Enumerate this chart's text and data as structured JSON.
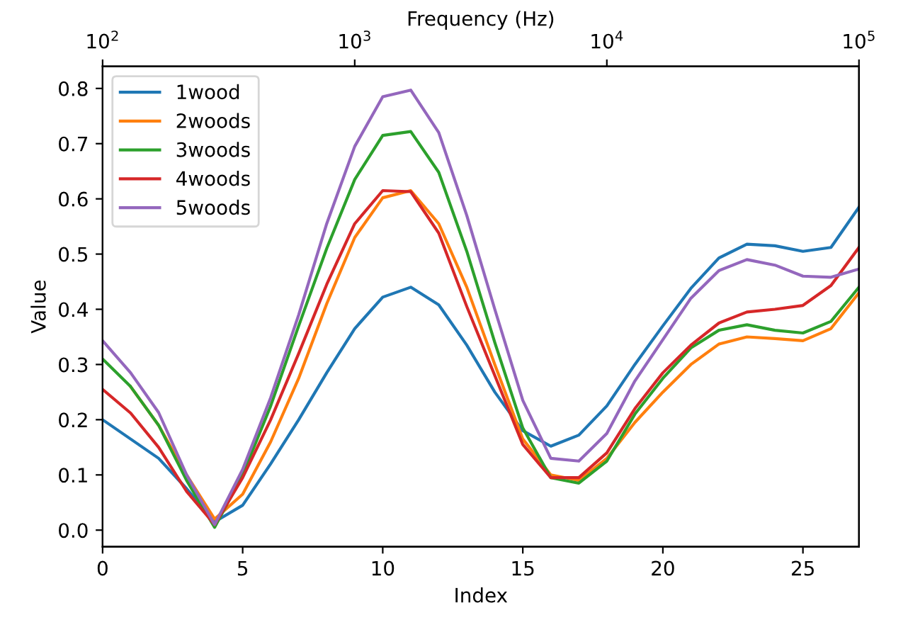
{
  "chart_data": {
    "type": "line",
    "xlabel": "Index",
    "ylabel": "Value",
    "x2label": "Frequency (Hz)",
    "x": [
      0,
      1,
      2,
      3,
      4,
      5,
      6,
      7,
      8,
      9,
      10,
      11,
      12,
      13,
      14,
      15,
      16,
      17,
      18,
      19,
      20,
      21,
      22,
      23,
      24,
      25,
      26,
      27
    ],
    "series": [
      {
        "name": "1wood",
        "color": "#1f77b4",
        "values": [
          0.2,
          0.165,
          0.13,
          0.075,
          0.015,
          0.045,
          0.12,
          0.2,
          0.285,
          0.365,
          0.422,
          0.44,
          0.408,
          0.335,
          0.25,
          0.18,
          0.152,
          0.172,
          0.225,
          0.3,
          0.37,
          0.438,
          0.493,
          0.518,
          0.515,
          0.505,
          0.512,
          0.585
        ]
      },
      {
        "name": "2woods",
        "color": "#ff7f0e",
        "values": [
          null,
          0.26,
          0.19,
          0.1,
          0.02,
          0.065,
          0.16,
          0.275,
          0.41,
          0.53,
          0.602,
          0.615,
          0.555,
          0.44,
          0.3,
          0.165,
          0.1,
          0.09,
          0.13,
          0.195,
          0.25,
          0.3,
          0.337,
          0.35,
          0.347,
          0.343,
          0.365,
          0.43
        ]
      },
      {
        "name": "3woods",
        "color": "#2ca02c",
        "values": [
          0.31,
          0.26,
          0.19,
          0.09,
          0.005,
          0.1,
          0.225,
          0.37,
          0.51,
          0.635,
          0.715,
          0.722,
          0.648,
          0.505,
          0.34,
          0.185,
          0.095,
          0.085,
          0.125,
          0.21,
          0.275,
          0.33,
          0.362,
          0.372,
          0.362,
          0.357,
          0.378,
          0.44
        ]
      },
      {
        "name": "4woods",
        "color": "#d62728",
        "values": [
          0.255,
          0.212,
          0.15,
          0.07,
          0.01,
          0.095,
          0.2,
          0.32,
          0.445,
          0.555,
          0.615,
          0.613,
          0.538,
          0.405,
          0.28,
          0.155,
          0.095,
          0.095,
          0.14,
          0.22,
          0.285,
          0.335,
          0.375,
          0.395,
          0.4,
          0.407,
          0.443,
          0.512
        ]
      },
      {
        "name": "5woods",
        "color": "#9467bd",
        "values": [
          0.343,
          0.285,
          0.213,
          0.1,
          0.01,
          0.11,
          0.24,
          0.39,
          0.555,
          0.695,
          0.785,
          0.797,
          0.72,
          0.57,
          0.4,
          0.235,
          0.13,
          0.125,
          0.175,
          0.27,
          0.345,
          0.42,
          0.47,
          0.49,
          0.48,
          0.46,
          0.458,
          0.473
        ]
      }
    ],
    "xlim": [
      0,
      27
    ],
    "xticks": [
      0,
      5,
      10,
      15,
      20,
      25
    ],
    "ylim": [
      -0.03,
      0.84
    ],
    "yticks": [
      {
        "value": 0,
        "label": "0.0"
      },
      {
        "value": 0.1,
        "label": "0.1"
      },
      {
        "value": 0.2,
        "label": "0.2"
      },
      {
        "value": 0.3,
        "label": "0.3"
      },
      {
        "value": 0.4,
        "label": "0.4"
      },
      {
        "value": 0.5,
        "label": "0.5"
      },
      {
        "value": 0.6,
        "label": "0.6"
      },
      {
        "value": 0.7,
        "label": "0.7"
      },
      {
        "value": 0.8,
        "label": "0.8"
      }
    ],
    "x2lim": [
      100,
      100000
    ],
    "x2ticks": [
      {
        "value": 100,
        "label": "10$^{2}$"
      },
      {
        "value": 1000,
        "label": "10$^{3}$"
      },
      {
        "value": 10000,
        "label": "10$^{4}$"
      },
      {
        "value": 100000,
        "label": "10$^{5}$"
      }
    ],
    "log": "x2",
    "grid": false,
    "legend": "top left",
    "marker": "none",
    "line_style": "solid"
  }
}
